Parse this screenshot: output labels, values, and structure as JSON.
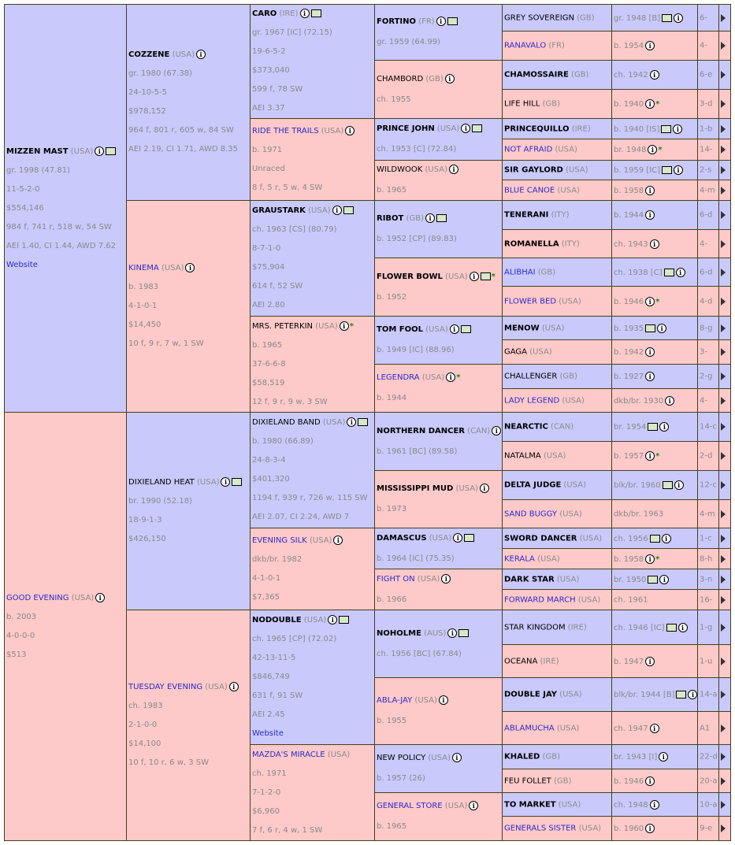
{
  "gen1": [
    {
      "name": "MIZZEN MAST",
      "country": "(USA)",
      "sex": "m",
      "bold": true,
      "icons": [
        "info",
        "mail"
      ],
      "lines": [
        "gr. 1998 (47.81)",
        "11-5-2-0",
        "$554,146",
        "984 f, 741 r, 518 w, 54 SW",
        "AEI 1.40, CI 1.44, AWD 7.62"
      ],
      "link": "Website"
    },
    {
      "name": "GOOD EVENING",
      "country": "(USA)",
      "sex": "f",
      "link_name": true,
      "icons": [
        "info"
      ],
      "lines": [
        "b. 2003",
        "4-0-0-0",
        "$513"
      ]
    }
  ],
  "gen2": [
    {
      "name": "COZZENE",
      "country": "(USA)",
      "sex": "m",
      "bold": true,
      "icons": [
        "info"
      ],
      "lines": [
        "gr. 1980 (67.38)",
        "24-10-5-5",
        "$978,152",
        "964 f, 801 r, 605 w, 84 SW",
        "AEI 2.19, CI 1.71, AWD 8.35"
      ]
    },
    {
      "name": "KINEMA",
      "country": "(USA)",
      "sex": "f",
      "link_name": true,
      "icons": [
        "info"
      ],
      "lines": [
        "b. 1983",
        "4-1-0-1",
        "$14,450",
        "10 f, 9 r, 7 w, 1 SW"
      ]
    },
    {
      "name": "DIXIELAND HEAT",
      "country": "(USA)",
      "sex": "m",
      "icons": [
        "info",
        "mail"
      ],
      "lines": [
        "br. 1990 (52.18)",
        "18-9-1-3",
        "$426,150"
      ]
    },
    {
      "name": "TUESDAY EVENING",
      "country": "(USA)",
      "sex": "f",
      "link_name": true,
      "icons": [
        "info"
      ],
      "lines": [
        "ch. 1983",
        "2-1-0-0",
        "$14,100",
        "10 f, 10 r, 6 w, 3 SW"
      ]
    }
  ],
  "gen3": [
    {
      "name": "CARO",
      "country": "(IRE)",
      "sex": "m",
      "bold": true,
      "icons": [
        "info",
        "mail"
      ],
      "lines": [
        "gr. 1967 [IC] (72.15)",
        "19-6-5-2",
        "$373,040",
        "599 f, 78 SW",
        "AEI 3.37"
      ]
    },
    {
      "name": "RIDE THE TRAILS",
      "country": "(USA)",
      "sex": "f",
      "link_name": true,
      "icons": [
        "info"
      ],
      "lines": [
        "b. 1971",
        "Unraced",
        "8 f, 5 r, 5 w, 4 SW"
      ]
    },
    {
      "name": "GRAUSTARK",
      "country": "(USA)",
      "sex": "m",
      "bold": true,
      "icons": [
        "info",
        "mail"
      ],
      "lines": [
        "ch. 1963 [CS] (80.79)",
        "8-7-1-0",
        "$75,904",
        "614 f, 52 SW",
        "AEI 2.80"
      ]
    },
    {
      "name": "MRS. PETERKIN",
      "country": "(USA)",
      "sex": "f",
      "icons": [
        "info"
      ],
      "star": true,
      "lines": [
        "b. 1965",
        "37-6-6-8",
        "$58,519",
        "12 f, 9 r, 9 w, 3 SW"
      ]
    },
    {
      "name": "DIXIELAND BAND",
      "country": "(USA)",
      "sex": "m",
      "icons": [
        "info",
        "mail"
      ],
      "lines": [
        "b. 1980 (66.89)",
        "24-8-3-4",
        "$401,320",
        "1194 f, 939 r, 726 w, 115 SW",
        "AEI 2.07, CI 2.24, AWD 7"
      ]
    },
    {
      "name": "EVENING SILK",
      "country": "(USA)",
      "sex": "f",
      "link_name": true,
      "icons": [
        "info"
      ],
      "lines": [
        "dkb/br. 1982",
        "4-1-0-1",
        "$7,365"
      ]
    },
    {
      "name": "NODOUBLE",
      "country": "(USA)",
      "sex": "m",
      "bold": true,
      "icons": [
        "info",
        "mail"
      ],
      "lines": [
        "ch. 1965 [CP] (72.02)",
        "42-13-11-5",
        "$846,749",
        "631 f, 91 SW",
        "AEI 2.45"
      ],
      "link": "Website"
    },
    {
      "name": "MAZDA'S MIRACLE",
      "country": "(USA)",
      "sex": "f",
      "link_name": true,
      "icons": [],
      "lines": [
        "ch. 1971",
        "7-1-2-0",
        "$6,960",
        "7 f, 6 r, 4 w, 1 SW"
      ]
    }
  ],
  "gen4": [
    {
      "name": "FORTINO",
      "country": "(FR)",
      "sex": "m",
      "bold": true,
      "icons": [
        "info",
        "mail"
      ],
      "lines": [
        "gr. 1959 (64.99)"
      ]
    },
    {
      "name": "CHAMBORD",
      "country": "(GB)",
      "sex": "f",
      "icons": [
        "info"
      ],
      "lines": [
        "ch. 1955"
      ]
    },
    {
      "name": "PRINCE JOHN",
      "country": "(USA)",
      "sex": "m",
      "bold": true,
      "icons": [
        "info",
        "mail"
      ],
      "lines": [
        "ch. 1953 [C] (72.84)"
      ]
    },
    {
      "name": "WILDWOOK",
      "country": "(USA)",
      "sex": "f",
      "icons": [
        "info"
      ],
      "lines": [
        "b. 1965"
      ]
    },
    {
      "name": "RIBOT",
      "country": "(GB)",
      "sex": "m",
      "bold": true,
      "icons": [
        "info",
        "mail"
      ],
      "lines": [
        "b. 1952 [CP] (89.83)"
      ]
    },
    {
      "name": "FLOWER BOWL",
      "country": "(USA)",
      "sex": "f",
      "bold": true,
      "icons": [
        "info",
        "mail"
      ],
      "star": true,
      "lines": [
        "b. 1952"
      ]
    },
    {
      "name": "TOM FOOL",
      "country": "(USA)",
      "sex": "m",
      "bold": true,
      "icons": [
        "info",
        "mail"
      ],
      "lines": [
        "b. 1949 [IC] (88.96)"
      ]
    },
    {
      "name": "LEGENDRA",
      "country": "(USA)",
      "sex": "f",
      "link_name": true,
      "icons": [
        "info"
      ],
      "star": true,
      "lines": [
        "b. 1944"
      ]
    },
    {
      "name": "NORTHERN DANCER",
      "country": "(CAN)",
      "sex": "m",
      "bold": true,
      "icons": [
        "info",
        "mail"
      ],
      "lines": [
        "b. 1961 [BC] (89.58)"
      ]
    },
    {
      "name": "MISSISSIPPI MUD",
      "country": "(USA)",
      "sex": "f",
      "bold": true,
      "icons": [
        "info"
      ],
      "lines": [
        "b. 1973"
      ]
    },
    {
      "name": "DAMASCUS",
      "country": "(USA)",
      "sex": "m",
      "bold": true,
      "icons": [
        "info",
        "mail"
      ],
      "lines": [
        "b. 1964 [IC] (75.35)"
      ]
    },
    {
      "name": "FIGHT ON",
      "country": "(USA)",
      "sex": "f",
      "link_name": true,
      "icons": [
        "info"
      ],
      "lines": [
        "b. 1966"
      ]
    },
    {
      "name": "NOHOLME",
      "country": "(AUS)",
      "sex": "m",
      "bold": true,
      "icons": [
        "info",
        "mail"
      ],
      "lines": [
        "ch. 1956 [BC] (67.84)"
      ]
    },
    {
      "name": "ABLA-JAY",
      "country": "(USA)",
      "sex": "f",
      "link_name": true,
      "icons": [
        "info"
      ],
      "lines": [
        "b. 1955"
      ]
    },
    {
      "name": "NEW POLICY",
      "country": "(USA)",
      "sex": "m",
      "icons": [
        "info"
      ],
      "lines": [
        "b. 1957 (26)"
      ]
    },
    {
      "name": "GENERAL STORE",
      "country": "(USA)",
      "sex": "f",
      "link_name": true,
      "icons": [
        "info"
      ],
      "lines": [
        "b. 1965"
      ]
    }
  ],
  "gen5": [
    {
      "name": "GREY SOVEREIGN",
      "country": "(GB)",
      "sex": "m",
      "dam_line": "gr. 1948 [B]",
      "icons": [
        "mail",
        "info"
      ],
      "fam": "6-"
    },
    {
      "name": "RANAVALO",
      "country": "(FR)",
      "sex": "f",
      "link_name": true,
      "dam_line": "b. 1954",
      "icons": [
        "info"
      ],
      "fam": "4-"
    },
    {
      "name": "CHAMOSSAIRE",
      "country": "(GB)",
      "sex": "m",
      "bold": true,
      "dam_line": "ch. 1942",
      "icons": [
        "info"
      ],
      "fam": "6-e"
    },
    {
      "name": "LIFE HILL",
      "country": "(GB)",
      "sex": "f",
      "dam_line": "b. 1940",
      "icons": [
        "info"
      ],
      "star": true,
      "fam": "3-d"
    },
    {
      "name": "PRINCEQUILLO",
      "country": "(IRE)",
      "sex": "m",
      "bold": true,
      "dam_line": "b. 1940 [IS]",
      "icons": [
        "mail",
        "info"
      ],
      "fam": "1-b"
    },
    {
      "name": "NOT AFRAID",
      "country": "(USA)",
      "sex": "f",
      "link_name": true,
      "dam_line": "br. 1948",
      "icons": [
        "info"
      ],
      "star": true,
      "fam": "14-"
    },
    {
      "name": "SIR GAYLORD",
      "country": "(USA)",
      "sex": "m",
      "bold": true,
      "dam_line": "b. 1959 [IC]",
      "icons": [
        "mail",
        "info"
      ],
      "fam": "2-s"
    },
    {
      "name": "BLUE CANOE",
      "country": "(USA)",
      "sex": "f",
      "link_name": true,
      "dam_line": "b. 1958",
      "icons": [
        "info"
      ],
      "fam": "4-m"
    },
    {
      "name": "TENERANI",
      "country": "(ITY)",
      "sex": "m",
      "bold": true,
      "dam_line": "b. 1944",
      "icons": [
        "info"
      ],
      "fam": "6-d"
    },
    {
      "name": "ROMANELLA",
      "country": "(ITY)",
      "sex": "f",
      "bold": true,
      "dam_line": "ch. 1943",
      "icons": [
        "info"
      ],
      "fam": "4-"
    },
    {
      "name": "ALIBHAI",
      "country": "(GB)",
      "sex": "m",
      "link_name": true,
      "dam_line": "ch. 1938 [C]",
      "icons": [
        "mail",
        "info"
      ],
      "fam": "6-d"
    },
    {
      "name": "FLOWER BED",
      "country": "(USA)",
      "sex": "f",
      "link_name": true,
      "dam_line": "b. 1946",
      "icons": [
        "info"
      ],
      "star": true,
      "fam": "4-d"
    },
    {
      "name": "MENOW",
      "country": "(USA)",
      "sex": "m",
      "bold": true,
      "dam_line": "b. 1935",
      "icons": [
        "mail",
        "info"
      ],
      "fam": "8-g"
    },
    {
      "name": "GAGA",
      "country": "(USA)",
      "sex": "f",
      "dam_line": "b. 1942",
      "icons": [
        "info"
      ],
      "fam": "3-"
    },
    {
      "name": "CHALLENGER",
      "country": "(GB)",
      "sex": "m",
      "dam_line": "b. 1927",
      "icons": [
        "info"
      ],
      "fam": "2-g"
    },
    {
      "name": "LADY LEGEND",
      "country": "(USA)",
      "sex": "f",
      "link_name": true,
      "dam_line": "dkb/br. 1930",
      "icons": [
        "info"
      ],
      "fam": "4-"
    },
    {
      "name": "NEARCTIC",
      "country": "(CAN)",
      "sex": "m",
      "bold": true,
      "dam_line": "br. 1954",
      "icons": [
        "mail",
        "info"
      ],
      "fam": "14-c"
    },
    {
      "name": "NATALMA",
      "country": "(USA)",
      "sex": "f",
      "dam_line": "b. 1957",
      "icons": [
        "info"
      ],
      "star": true,
      "fam": "2-d"
    },
    {
      "name": "DELTA JUDGE",
      "country": "(USA)",
      "sex": "m",
      "bold": true,
      "dam_line": "blk/br. 1960",
      "icons": [
        "mail",
        "info"
      ],
      "fam": "12-c"
    },
    {
      "name": "SAND BUGGY",
      "country": "(USA)",
      "sex": "f",
      "link_name": true,
      "dam_line": "dkb/br. 1963",
      "icons": [],
      "fam": "4-m"
    },
    {
      "name": "SWORD DANCER",
      "country": "(USA)",
      "sex": "m",
      "bold": true,
      "dam_line": "ch. 1956",
      "icons": [
        "mail",
        "info"
      ],
      "fam": "1-c"
    },
    {
      "name": "KERALA",
      "country": "(USA)",
      "sex": "f",
      "link_name": true,
      "dam_line": "b. 1958",
      "icons": [
        "info"
      ],
      "star": true,
      "fam": "8-h"
    },
    {
      "name": "DARK STAR",
      "country": "(USA)",
      "sex": "m",
      "bold": true,
      "dam_line": "br. 1950",
      "icons": [
        "mail",
        "info"
      ],
      "fam": "3-n"
    },
    {
      "name": "FORWARD MARCH",
      "country": "(USA)",
      "sex": "f",
      "link_name": true,
      "dam_line": "ch. 1961",
      "icons": [],
      "fam": "16-"
    },
    {
      "name": "STAR KINGDOM",
      "country": "(IRE)",
      "sex": "m",
      "dam_line": "ch. 1946 [IC]",
      "icons": [
        "mail",
        "info"
      ],
      "fam": "1-g"
    },
    {
      "name": "OCEANA",
      "country": "(IRE)",
      "sex": "f",
      "dam_line": "b. 1947",
      "icons": [
        "info"
      ],
      "fam": "1-u"
    },
    {
      "name": "DOUBLE JAY",
      "country": "(USA)",
      "sex": "m",
      "bold": true,
      "dam_line": "blk/br. 1944 [B]",
      "icons": [
        "mail",
        "info"
      ],
      "fam": "14-a"
    },
    {
      "name": "ABLAMUCHA",
      "country": "(USA)",
      "sex": "f",
      "link_name": true,
      "dam_line": "ch. 1947",
      "icons": [
        "info"
      ],
      "fam": "A1"
    },
    {
      "name": "KHALED",
      "country": "(GB)",
      "sex": "m",
      "bold": true,
      "dam_line": "br. 1943 [I]",
      "icons": [
        "info"
      ],
      "fam": "22-d"
    },
    {
      "name": "FEU FOLLET",
      "country": "(GB)",
      "sex": "f",
      "dam_line": "b. 1946",
      "icons": [
        "info"
      ],
      "fam": "20-a"
    },
    {
      "name": "TO MARKET",
      "country": "(USA)",
      "sex": "m",
      "bold": true,
      "dam_line": "ch. 1948",
      "icons": [
        "info"
      ],
      "fam": "10-a"
    },
    {
      "name": "GENERALS SISTER",
      "country": "(USA)",
      "sex": "f",
      "link_name": true,
      "dam_line": "b. 1960",
      "icons": [
        "info"
      ],
      "fam": "9-e"
    }
  ]
}
